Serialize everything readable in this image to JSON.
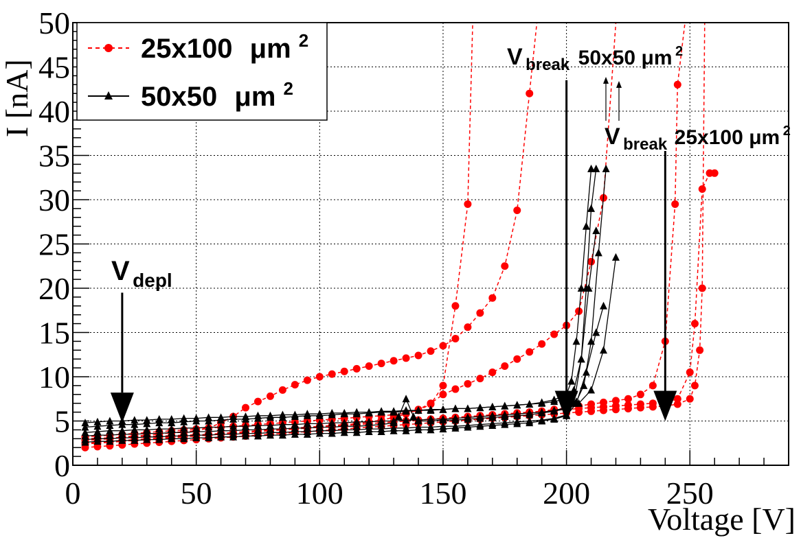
{
  "chart_data": {
    "type": "line",
    "xlabel": "Voltage [V]",
    "ylabel": "I [nA]",
    "xlim": [
      0,
      290
    ],
    "ylim": [
      0,
      50
    ],
    "x_ticks": [
      0,
      50,
      100,
      150,
      200,
      250
    ],
    "x_tick_labels": [
      "0",
      "50",
      "100",
      "150",
      "200",
      "250"
    ],
    "y_ticks": [
      0,
      5,
      10,
      15,
      20,
      25,
      30,
      35,
      40,
      45,
      50
    ],
    "y_tick_labels": [
      "0",
      "5",
      "10",
      "15",
      "20",
      "25",
      "30",
      "35",
      "40",
      "45",
      "50"
    ],
    "grid": true,
    "legend": {
      "placement": "top-left",
      "entries": [
        {
          "label": "25x100",
          "unit": "μm",
          "sup": "2",
          "color": "#ff0000",
          "marker": "circle",
          "dash": true
        },
        {
          "label": "50x50",
          "unit": "μm",
          "sup": "2",
          "color": "#000000",
          "marker": "triangle",
          "dash": false
        }
      ]
    },
    "annotations": [
      {
        "id": "vdepl",
        "text": "V",
        "sub": "depl",
        "x": 20,
        "y_top": 19.5,
        "y_tip": 4.8
      },
      {
        "id": "vb50",
        "text": "V",
        "sub": "break",
        "extra": "50x50",
        "unit": "μm",
        "sup": "2",
        "x": 200,
        "y_top": 43.5,
        "y_tip": 5.0
      },
      {
        "id": "vb25",
        "text": "V",
        "sub": "break",
        "extra": "25x100",
        "unit": "μm",
        "sup": "2",
        "x": 240,
        "y_top": 35.5,
        "y_tip": 5.0
      }
    ],
    "series": [
      {
        "name": "25x100 A",
        "group": "25x100",
        "color": "#ff0000",
        "x": [
          5,
          10,
          15,
          20,
          25,
          30,
          35,
          40,
          45,
          50,
          55,
          60,
          65,
          70,
          75,
          80,
          85,
          90,
          95,
          100,
          105,
          110,
          115,
          120,
          125,
          130,
          135,
          140,
          145,
          150,
          155,
          160,
          162
        ],
        "y": [
          3.2,
          3.3,
          3.4,
          3.5,
          3.6,
          3.7,
          3.8,
          3.9,
          4.0,
          4.1,
          4.2,
          4.3,
          4.4,
          4.5,
          4.6,
          4.7,
          4.8,
          4.9,
          5.0,
          5.1,
          5.2,
          5.3,
          5.4,
          5.5,
          5.6,
          5.7,
          5.9,
          6.2,
          6.9,
          9.0,
          18.0,
          29.5,
          50
        ]
      },
      {
        "name": "25x100 B",
        "group": "25x100",
        "color": "#ff0000",
        "x": [
          5,
          10,
          15,
          20,
          25,
          30,
          35,
          40,
          45,
          50,
          55,
          60,
          65,
          70,
          75,
          80,
          85,
          90,
          95,
          100,
          105,
          110,
          115,
          120,
          125,
          130,
          135,
          140,
          145,
          150,
          155,
          160,
          165,
          170,
          175,
          180,
          185,
          188
        ],
        "y": [
          2.8,
          2.9,
          3.0,
          3.2,
          3.3,
          3.4,
          3.5,
          3.7,
          3.8,
          3.9,
          4.2,
          4.8,
          5.5,
          6.5,
          7.2,
          7.8,
          8.5,
          9.1,
          9.6,
          10.0,
          10.3,
          10.6,
          10.9,
          11.2,
          11.5,
          11.8,
          12.1,
          12.4,
          12.9,
          13.5,
          14.3,
          15.6,
          17.2,
          18.9,
          22.5,
          28.8,
          42.0,
          50
        ]
      },
      {
        "name": "25x100 C",
        "group": "25x100",
        "color": "#ff0000",
        "x": [
          5,
          10,
          15,
          20,
          25,
          30,
          35,
          40,
          45,
          50,
          55,
          60,
          65,
          70,
          75,
          80,
          85,
          90,
          95,
          100,
          105,
          110,
          115,
          120,
          125,
          130,
          135,
          140,
          145,
          150,
          155,
          160,
          165,
          170,
          175,
          180,
          185,
          190,
          195,
          200,
          205,
          210,
          215,
          220
        ],
        "y": [
          2.5,
          2.6,
          2.7,
          2.8,
          2.9,
          3.0,
          3.1,
          3.2,
          3.3,
          3.4,
          3.5,
          3.6,
          3.7,
          3.8,
          3.9,
          4.0,
          4.1,
          4.2,
          4.3,
          4.4,
          4.5,
          4.6,
          4.7,
          4.9,
          5.1,
          5.4,
          5.8,
          6.3,
          7.0,
          8.0,
          8.6,
          9.2,
          9.8,
          10.5,
          11.2,
          12.0,
          12.8,
          13.7,
          14.8,
          15.8,
          17.4,
          23.0,
          30.2,
          50
        ]
      },
      {
        "name": "25x100 D",
        "group": "25x100",
        "color": "#ff0000",
        "x": [
          5,
          10,
          15,
          20,
          25,
          30,
          35,
          40,
          45,
          50,
          55,
          60,
          65,
          70,
          75,
          80,
          85,
          90,
          95,
          100,
          105,
          110,
          115,
          120,
          125,
          130,
          135,
          140,
          145,
          150,
          155,
          160,
          165,
          170,
          175,
          180,
          185,
          190,
          195,
          200,
          205,
          210,
          215,
          220,
          225,
          230,
          235,
          240,
          244,
          245,
          248
        ],
        "y": [
          3.0,
          3.05,
          3.1,
          3.15,
          3.2,
          3.25,
          3.3,
          3.35,
          3.4,
          3.45,
          3.5,
          3.55,
          3.6,
          3.7,
          3.8,
          3.9,
          4.0,
          4.1,
          4.2,
          4.3,
          4.4,
          4.5,
          4.6,
          4.7,
          4.8,
          4.9,
          5.0,
          5.1,
          5.2,
          5.3,
          5.4,
          5.5,
          5.6,
          5.7,
          5.8,
          5.9,
          6.0,
          6.1,
          6.3,
          6.5,
          6.7,
          6.9,
          7.1,
          7.3,
          7.5,
          8.0,
          9.0,
          14.0,
          29.5,
          43.0,
          50
        ]
      },
      {
        "name": "25x100 E",
        "group": "25x100",
        "color": "#ff0000",
        "x": [
          5,
          10,
          15,
          20,
          25,
          30,
          35,
          40,
          45,
          50,
          55,
          60,
          65,
          70,
          75,
          80,
          85,
          90,
          95,
          100,
          105,
          110,
          115,
          120,
          125,
          130,
          135,
          140,
          145,
          150,
          155,
          160,
          165,
          170,
          175,
          180,
          185,
          190,
          195,
          200,
          205,
          210,
          215,
          220,
          225,
          230,
          235,
          240,
          245,
          250,
          252,
          255,
          258,
          260
        ],
        "y": [
          2.4,
          2.5,
          2.6,
          2.7,
          2.8,
          2.9,
          3.0,
          3.1,
          3.2,
          3.3,
          3.4,
          3.5,
          3.6,
          3.7,
          3.8,
          3.9,
          4.0,
          4.1,
          4.2,
          4.3,
          4.4,
          4.5,
          4.6,
          4.7,
          4.8,
          4.9,
          5.0,
          5.1,
          5.2,
          5.3,
          5.4,
          5.5,
          5.6,
          5.7,
          5.8,
          5.9,
          6.0,
          6.1,
          6.2,
          6.3,
          6.4,
          6.5,
          6.6,
          6.7,
          6.8,
          6.9,
          7.0,
          7.1,
          7.5,
          10.5,
          16.0,
          31.2,
          33.0,
          33.0
        ]
      },
      {
        "name": "25x100 F",
        "group": "25x100",
        "color": "#ff0000",
        "x": [
          5,
          10,
          15,
          20,
          25,
          30,
          35,
          40,
          45,
          50,
          55,
          60,
          65,
          70,
          75,
          80,
          85,
          90,
          95,
          100,
          105,
          110,
          115,
          120,
          125,
          130,
          135,
          140,
          145,
          150,
          155,
          160,
          165,
          170,
          175,
          180,
          185,
          190,
          195,
          200,
          205,
          210,
          215,
          220,
          225,
          230,
          235,
          240,
          245,
          250,
          252,
          254,
          255,
          256
        ],
        "y": [
          2.0,
          2.1,
          2.2,
          2.3,
          2.4,
          2.5,
          2.6,
          2.7,
          2.8,
          2.9,
          3.0,
          3.1,
          3.2,
          3.3,
          3.4,
          3.5,
          3.6,
          3.7,
          3.8,
          3.9,
          4.0,
          4.1,
          4.2,
          4.3,
          4.4,
          4.5,
          4.6,
          4.7,
          4.8,
          4.9,
          5.0,
          5.1,
          5.2,
          5.3,
          5.4,
          5.5,
          5.6,
          5.7,
          5.8,
          5.9,
          6.0,
          6.1,
          6.2,
          6.3,
          6.4,
          6.5,
          6.6,
          6.7,
          6.9,
          7.5,
          9.0,
          13.0,
          20.0,
          50
        ]
      },
      {
        "name": "50x50 A",
        "group": "50x50",
        "color": "#000000",
        "x": [
          5,
          10,
          15,
          20,
          25,
          30,
          35,
          40,
          45,
          50,
          55,
          60,
          65,
          70,
          75,
          80,
          85,
          90,
          95,
          100,
          105,
          110,
          115,
          120,
          125,
          130,
          135,
          140,
          145,
          150,
          155,
          160,
          165,
          170,
          175,
          180,
          185,
          190,
          195,
          200,
          202,
          204,
          206,
          208,
          210
        ],
        "y": [
          4.8,
          4.9,
          5.0,
          5.0,
          5.1,
          5.1,
          5.2,
          5.2,
          5.3,
          5.3,
          5.4,
          5.4,
          5.5,
          5.5,
          5.6,
          5.6,
          5.7,
          5.7,
          5.8,
          5.8,
          5.9,
          5.9,
          6.0,
          6.0,
          6.1,
          6.1,
          6.2,
          6.2,
          6.3,
          6.3,
          6.4,
          6.4,
          6.5,
          6.6,
          6.7,
          6.8,
          6.9,
          7.1,
          7.4,
          8.0,
          9.5,
          14.0,
          20.0,
          27.0,
          33.5
        ]
      },
      {
        "name": "50x50 B",
        "group": "50x50",
        "color": "#000000",
        "x": [
          5,
          10,
          15,
          20,
          25,
          30,
          35,
          40,
          45,
          50,
          55,
          60,
          65,
          70,
          75,
          80,
          85,
          90,
          95,
          100,
          105,
          110,
          115,
          120,
          125,
          130,
          135,
          140,
          145,
          150,
          155,
          160,
          165,
          170,
          175,
          180,
          185,
          190,
          195,
          200,
          203,
          206,
          208,
          210,
          212
        ],
        "y": [
          4.3,
          4.4,
          4.5,
          4.6,
          4.6,
          4.7,
          4.8,
          4.8,
          4.9,
          5.0,
          5.0,
          5.1,
          5.2,
          5.2,
          5.3,
          5.4,
          5.4,
          5.5,
          5.6,
          5.6,
          5.7,
          5.8,
          5.8,
          5.9,
          6.0,
          6.0,
          6.1,
          6.2,
          6.2,
          6.3,
          6.4,
          6.4,
          6.5,
          6.6,
          6.7,
          6.8,
          6.9,
          7.0,
          7.2,
          7.5,
          8.5,
          12.0,
          20.0,
          29.0,
          33.5
        ]
      },
      {
        "name": "50x50 C",
        "group": "50x50",
        "color": "#000000",
        "x": [
          5,
          10,
          15,
          20,
          25,
          30,
          35,
          40,
          45,
          50,
          55,
          60,
          65,
          70,
          75,
          80,
          85,
          90,
          95,
          100,
          105,
          110,
          115,
          120,
          125,
          130,
          135,
          140,
          145,
          150,
          155,
          160,
          165,
          170,
          175,
          180,
          185,
          190,
          195,
          200,
          204,
          207,
          210,
          213,
          216
        ],
        "y": [
          3.7,
          3.8,
          3.9,
          3.9,
          4.0,
          4.0,
          4.1,
          4.1,
          4.2,
          4.2,
          4.3,
          4.3,
          4.4,
          4.4,
          4.5,
          4.5,
          4.6,
          4.6,
          4.7,
          4.7,
          4.8,
          4.8,
          4.9,
          4.9,
          5.0,
          5.0,
          5.1,
          5.1,
          5.2,
          5.2,
          5.3,
          5.4,
          5.5,
          5.6,
          5.7,
          5.8,
          5.9,
          6.0,
          6.2,
          6.5,
          7.2,
          9.0,
          14.0,
          24.0,
          33.5
        ]
      },
      {
        "name": "50x50 D",
        "group": "50x50",
        "color": "#000000",
        "x": [
          5,
          10,
          15,
          20,
          25,
          30,
          35,
          40,
          45,
          50,
          55,
          60,
          65,
          70,
          75,
          80,
          85,
          90,
          95,
          100,
          105,
          110,
          115,
          120,
          125,
          130,
          132,
          135,
          138,
          140,
          145,
          150,
          155,
          160,
          165,
          170,
          175,
          180,
          185,
          190,
          195,
          200,
          205,
          210,
          215,
          220
        ],
        "y": [
          3.3,
          3.4,
          3.4,
          3.5,
          3.5,
          3.6,
          3.6,
          3.7,
          3.7,
          3.8,
          3.8,
          3.9,
          3.9,
          4.0,
          4.0,
          4.1,
          4.1,
          4.2,
          4.2,
          4.3,
          4.3,
          4.4,
          4.4,
          4.5,
          4.6,
          4.8,
          5.5,
          7.5,
          5.5,
          5.0,
          5.0,
          5.1,
          5.1,
          5.2,
          5.3,
          5.4,
          5.5,
          5.6,
          5.7,
          5.9,
          6.1,
          6.4,
          7.0,
          8.5,
          13.0,
          23.5
        ]
      },
      {
        "name": "50x50 E",
        "group": "50x50",
        "color": "#000000",
        "x": [
          5,
          10,
          15,
          20,
          25,
          30,
          35,
          40,
          45,
          50,
          55,
          60,
          65,
          70,
          75,
          80,
          85,
          90,
          95,
          100,
          105,
          110,
          115,
          120,
          125,
          130,
          135,
          140,
          145,
          150,
          155,
          160,
          165,
          170,
          175,
          180,
          185,
          190,
          195,
          200,
          203,
          206,
          209,
          212
        ],
        "y": [
          2.9,
          3.0,
          3.0,
          3.1,
          3.1,
          3.2,
          3.2,
          3.3,
          3.3,
          3.4,
          3.4,
          3.5,
          3.5,
          3.6,
          3.6,
          3.7,
          3.7,
          3.8,
          3.8,
          3.9,
          3.9,
          4.0,
          4.0,
          4.1,
          4.1,
          4.2,
          4.2,
          4.3,
          4.3,
          4.4,
          4.4,
          4.5,
          4.6,
          4.7,
          4.8,
          4.9,
          5.0,
          5.1,
          5.3,
          5.7,
          7.0,
          12.0,
          20.0,
          26.5
        ]
      },
      {
        "name": "50x50 F",
        "group": "50x50",
        "color": "#000000",
        "x": [
          5,
          10,
          15,
          20,
          25,
          30,
          35,
          40,
          45,
          50,
          55,
          60,
          65,
          70,
          75,
          80,
          85,
          90,
          95,
          100,
          105,
          110,
          115,
          120,
          125,
          130,
          135,
          140,
          145,
          150,
          155,
          160,
          165,
          170,
          175,
          180,
          185,
          190,
          195,
          200,
          204,
          208,
          212,
          215
        ],
        "y": [
          2.6,
          2.7,
          2.7,
          2.8,
          2.8,
          2.9,
          2.9,
          3.0,
          3.0,
          3.1,
          3.1,
          3.2,
          3.2,
          3.3,
          3.3,
          3.4,
          3.4,
          3.5,
          3.5,
          3.6,
          3.6,
          3.7,
          3.7,
          3.8,
          3.8,
          3.9,
          3.9,
          4.0,
          4.0,
          4.1,
          4.2,
          4.3,
          4.4,
          4.5,
          4.6,
          4.7,
          4.8,
          5.0,
          5.2,
          5.6,
          7.0,
          10.5,
          15.0,
          18.0
        ]
      }
    ]
  }
}
